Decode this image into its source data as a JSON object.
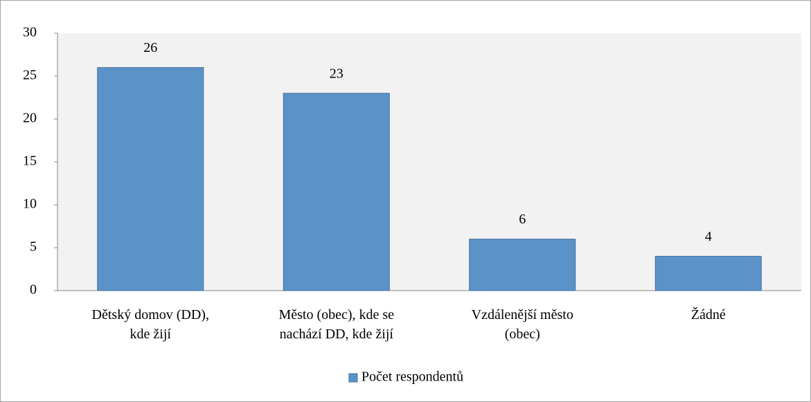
{
  "chart_data": {
    "type": "bar",
    "categories": [
      "Dětský domov (DD), kde žijí",
      "Město (obec), kde se nachází DD, kde žijí",
      "Vzdálenější město (obec)",
      "Žádné"
    ],
    "series": [
      {
        "name": "Počet respondentů",
        "color": "#5b93c9",
        "values": [
          26,
          23,
          6,
          4
        ]
      }
    ],
    "ylim": [
      0,
      30
    ],
    "yticks": [
      0,
      5,
      10,
      15,
      20,
      25,
      30
    ],
    "grid": false,
    "data_labels": true,
    "legend": "bottom"
  }
}
